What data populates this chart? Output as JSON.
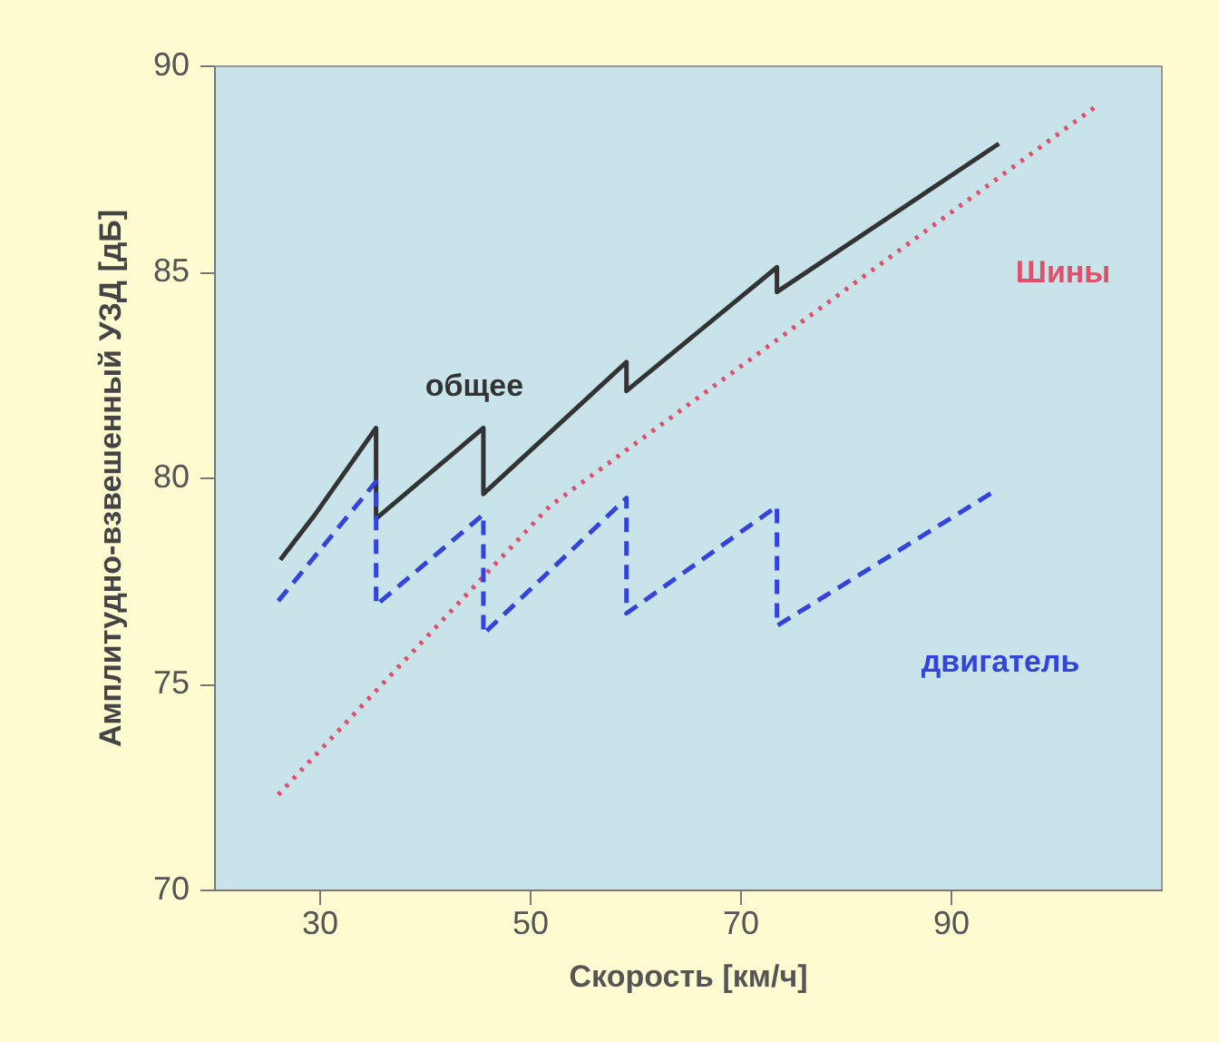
{
  "chart_data": {
    "type": "line",
    "xlabel": "Скорость [км/ч]",
    "ylabel": "Амплитудно-взвешенный УЗД [дБ]",
    "xlim": [
      20,
      110
    ],
    "xticks": [
      30,
      50,
      70,
      90
    ],
    "ylim": [
      70,
      90
    ],
    "yticks": [
      70,
      75,
      80,
      85,
      90
    ],
    "grid": false,
    "series": [
      {
        "name": "общее",
        "color": "#333333",
        "line_style": "solid",
        "x": [
          26.3,
          29.6,
          35.4,
          35.4,
          45.6,
          45.6,
          59.2,
          59.2,
          73.5,
          73.5,
          94.6
        ],
        "values": [
          78.0,
          79.1,
          81.2,
          79.0,
          81.2,
          79.6,
          82.8,
          82.1,
          85.1,
          84.5,
          88.1
        ]
      },
      {
        "name": "Шины",
        "color": "#e0506a",
        "line_style": "dotted",
        "x": [
          26.1,
          51.9,
          103.8
        ],
        "values": [
          72.3,
          79.3,
          89.0
        ]
      },
      {
        "name": "двигатель",
        "color": "#3344dd",
        "line_style": "dashed",
        "x": [
          26.1,
          35.4,
          35.4,
          45.6,
          45.6,
          59.2,
          59.2,
          73.5,
          73.5,
          94.4
        ],
        "values": [
          77.0,
          79.9,
          76.9,
          79.1,
          76.2,
          79.5,
          76.7,
          79.3,
          76.4,
          79.7
        ]
      }
    ]
  }
}
